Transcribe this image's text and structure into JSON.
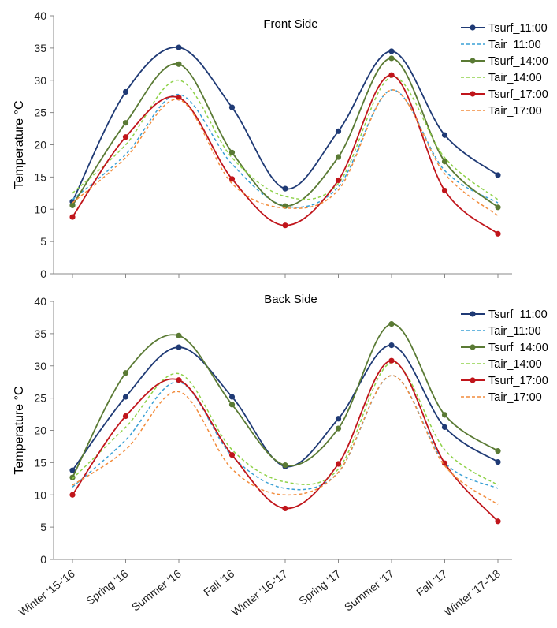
{
  "chart_data": [
    {
      "type": "line",
      "title": "Front Side",
      "ylabel": "Temperature °C",
      "xlabel": "",
      "ylim": [
        0,
        40
      ],
      "yticks": [
        0,
        5,
        10,
        15,
        20,
        25,
        30,
        35,
        40
      ],
      "grid": false,
      "legend": "top-right",
      "categories": [
        "Winter '15-'16",
        "Spring '16",
        "Summer '16",
        "Fall '16",
        "Winter '16-'17",
        "Spring '17",
        "Summer '17",
        "Fall '17",
        "Winter '17-'18"
      ],
      "series": [
        {
          "name": "Tsurf_11:00",
          "color": "#1f3a75",
          "style": "solid",
          "values": [
            11.2,
            28.2,
            35.1,
            25.8,
            13.2,
            22.1,
            34.5,
            21.5,
            15.3
          ]
        },
        {
          "name": "Tair_11:00",
          "color": "#3aa0d5",
          "style": "dashed",
          "values": [
            11.5,
            18.5,
            27.8,
            17.0,
            10.5,
            13.5,
            28.5,
            16.0,
            11.0
          ]
        },
        {
          "name": "Tsurf_14:00",
          "color": "#5a7a34",
          "style": "solid",
          "values": [
            10.6,
            23.4,
            32.5,
            18.8,
            10.5,
            18.1,
            33.4,
            17.4,
            10.3
          ]
        },
        {
          "name": "Tair_14:00",
          "color": "#8fd24a",
          "style": "dashed",
          "values": [
            12.5,
            20.0,
            30.0,
            18.0,
            12.0,
            14.0,
            30.5,
            18.0,
            11.5
          ]
        },
        {
          "name": "Tsurf_17:00",
          "color": "#c0151b",
          "style": "solid",
          "values": [
            8.8,
            21.2,
            27.3,
            14.7,
            7.5,
            14.5,
            30.8,
            12.9,
            6.2
          ]
        },
        {
          "name": "Tair_17:00",
          "color": "#f28c3c",
          "style": "dashed",
          "values": [
            11.0,
            18.0,
            27.0,
            14.0,
            10.2,
            13.0,
            28.5,
            15.5,
            9.0
          ]
        }
      ]
    },
    {
      "type": "line",
      "title": "Back Side",
      "ylabel": "Temperature °C",
      "xlabel": "",
      "ylim": [
        0,
        40
      ],
      "yticks": [
        0,
        5,
        10,
        15,
        20,
        25,
        30,
        35,
        40
      ],
      "grid": false,
      "legend": "top-right",
      "categories": [
        "Winter '15-'16",
        "Spring '16",
        "Summer '16",
        "Fall '16",
        "Winter '16-'17",
        "Spring '17",
        "Summer '17",
        "Fall '17",
        "Winter '17-'18"
      ],
      "series": [
        {
          "name": "Tsurf_11:00",
          "color": "#1f3a75",
          "style": "solid",
          "values": [
            13.8,
            25.2,
            32.9,
            25.2,
            14.4,
            21.8,
            33.2,
            20.5,
            15.1
          ]
        },
        {
          "name": "Tair_11:00",
          "color": "#3aa0d5",
          "style": "dashed",
          "values": [
            11.2,
            18.5,
            27.5,
            16.0,
            11.0,
            13.5,
            28.5,
            15.0,
            11.0
          ]
        },
        {
          "name": "Tsurf_14:00",
          "color": "#5a7a34",
          "style": "solid",
          "values": [
            12.7,
            28.9,
            34.7,
            24.0,
            14.6,
            20.3,
            36.5,
            22.4,
            16.8
          ]
        },
        {
          "name": "Tair_14:00",
          "color": "#8fd24a",
          "style": "dashed",
          "values": [
            12.5,
            20.5,
            28.8,
            17.0,
            12.0,
            14.0,
            30.5,
            17.0,
            11.5
          ]
        },
        {
          "name": "Tsurf_17:00",
          "color": "#c0151b",
          "style": "solid",
          "values": [
            10.0,
            22.2,
            27.8,
            16.2,
            7.9,
            14.8,
            30.8,
            14.9,
            5.9
          ]
        },
        {
          "name": "Tair_17:00",
          "color": "#f28c3c",
          "style": "dashed",
          "values": [
            11.5,
            17.0,
            26.0,
            14.0,
            10.0,
            13.5,
            28.5,
            14.5,
            8.5
          ]
        }
      ]
    }
  ]
}
